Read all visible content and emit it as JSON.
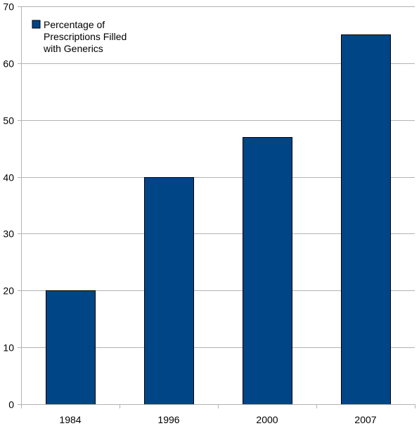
{
  "chart_data": {
    "type": "bar",
    "categories": [
      "1984",
      "1996",
      "2000",
      "2007"
    ],
    "series": [
      {
        "name": "Percentage of Prescriptions Filled with Generics",
        "values": [
          20,
          40,
          47,
          65
        ]
      }
    ],
    "ylim": [
      0,
      70
    ],
    "yticks": [
      0,
      10,
      20,
      30,
      40,
      50,
      60,
      70
    ],
    "grid": true,
    "legend_position": "top-left",
    "bar_color": "#004586",
    "bar_edge_color": "#000000",
    "grid_color": "#b3b3b3"
  },
  "legend": {
    "lines": [
      "Percentage of",
      "Prescriptions Filled",
      "with Generics"
    ]
  }
}
